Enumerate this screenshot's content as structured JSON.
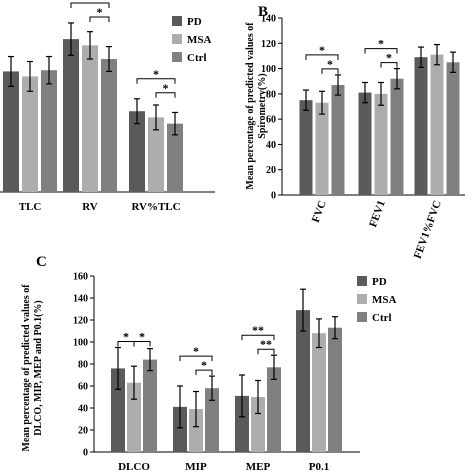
{
  "colors": {
    "PD": "#5a5a5a",
    "MSA": "#adadad",
    "Ctrl": "#808080"
  },
  "chart_data": [
    {
      "panel": "A",
      "type": "bar",
      "panel_label": "",
      "ylabel": "",
      "ylim": [
        0,
        140
      ],
      "show_axis_ticks": false,
      "categories": [
        "TLC",
        "RV",
        "RV%TLC"
      ],
      "legend": [
        "PD",
        "MSA",
        "Ctrl"
      ],
      "series": [
        {
          "name": "PD",
          "values": [
            97,
            123,
            65
          ],
          "errors": [
            12,
            13,
            10
          ]
        },
        {
          "name": "MSA",
          "values": [
            93,
            118,
            60
          ],
          "errors": [
            12,
            11,
            10
          ]
        },
        {
          "name": "Ctrl",
          "values": [
            98,
            107,
            55
          ],
          "errors": [
            11,
            10,
            9
          ]
        }
      ],
      "significance": [
        {
          "category": 1,
          "from": 0,
          "to": 2,
          "label": "*"
        },
        {
          "category": 1,
          "from": 1,
          "to": 2,
          "label": "*"
        },
        {
          "category": 2,
          "from": 0,
          "to": 2,
          "label": "*"
        },
        {
          "category": 2,
          "from": 1,
          "to": 2,
          "label": "*"
        }
      ]
    },
    {
      "panel": "B",
      "type": "bar",
      "panel_label": "B",
      "ylabel": "Mean percentage of predicted values of Spirometry(%)",
      "ylim": [
        0,
        140
      ],
      "yticks": [
        0,
        20,
        40,
        60,
        80,
        100,
        120,
        140
      ],
      "categories": [
        "FVC",
        "FEV1",
        "FEV1%FVC"
      ],
      "rotated_categories": true,
      "series": [
        {
          "name": "PD",
          "values": [
            75,
            81,
            109
          ],
          "errors": [
            8,
            8,
            8
          ]
        },
        {
          "name": "MSA",
          "values": [
            73,
            80,
            111
          ],
          "errors": [
            9,
            9,
            8
          ]
        },
        {
          "name": "Ctrl",
          "values": [
            87,
            92,
            105
          ],
          "errors": [
            8,
            8,
            8
          ]
        }
      ],
      "significance": [
        {
          "category": 0,
          "from": 0,
          "to": 2,
          "label": "*"
        },
        {
          "category": 0,
          "from": 1,
          "to": 2,
          "label": "*"
        },
        {
          "category": 1,
          "from": 0,
          "to": 2,
          "label": "*"
        },
        {
          "category": 1,
          "from": 1,
          "to": 2,
          "label": "*"
        }
      ]
    },
    {
      "panel": "C",
      "type": "bar",
      "panel_label": "C",
      "ylabel": "Mean percentage of predicted values of DLCO, MIP, MEP and P0.1(%)",
      "ylim": [
        0,
        160
      ],
      "yticks": [
        0,
        20,
        40,
        60,
        80,
        100,
        120,
        140,
        160
      ],
      "categories": [
        "DLCO",
        "MIP",
        "MEP",
        "P0.1"
      ],
      "legend": [
        "PD",
        "MSA",
        "Ctrl"
      ],
      "series": [
        {
          "name": "PD",
          "values": [
            76,
            41,
            51,
            129
          ],
          "errors": [
            19,
            19,
            19,
            19
          ]
        },
        {
          "name": "MSA",
          "values": [
            63,
            39,
            50,
            108
          ],
          "errors": [
            15,
            16,
            15,
            13
          ]
        },
        {
          "name": "Ctrl",
          "values": [
            84,
            58,
            77,
            113
          ],
          "errors": [
            10,
            11,
            11,
            10
          ]
        }
      ],
      "significance": [
        {
          "category": 0,
          "from": 0,
          "to": 1,
          "label": "*"
        },
        {
          "category": 0,
          "from": 1,
          "to": 2,
          "label": "*"
        },
        {
          "category": 1,
          "from": 0,
          "to": 2,
          "label": "*"
        },
        {
          "category": 1,
          "from": 1,
          "to": 2,
          "label": "*"
        },
        {
          "category": 2,
          "from": 0,
          "to": 2,
          "label": "**"
        },
        {
          "category": 2,
          "from": 1,
          "to": 2,
          "label": "**"
        }
      ]
    }
  ]
}
